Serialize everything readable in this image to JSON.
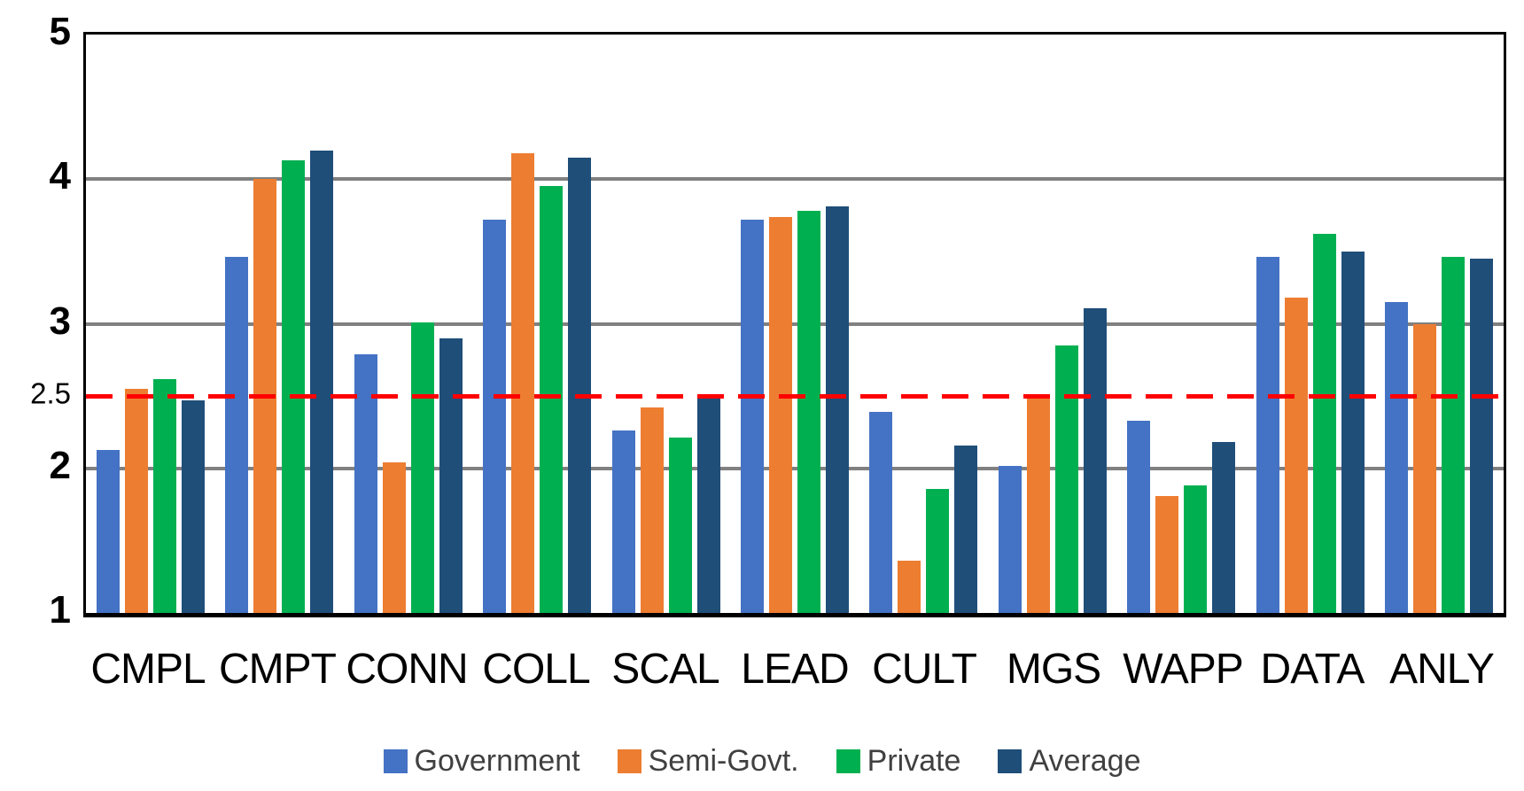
{
  "chart_data": {
    "type": "bar",
    "title": "",
    "categories": [
      "CMPL",
      "CMPT",
      "CONN",
      "COLL",
      "SCAL",
      "LEAD",
      "CULT",
      "MGS",
      "WAPP",
      "DATA",
      "ANLY"
    ],
    "series": [
      {
        "name": "Government",
        "color": "#4472C4",
        "values": [
          2.13,
          3.46,
          2.79,
          3.72,
          2.26,
          3.72,
          2.39,
          2.02,
          2.33,
          3.46,
          3.15
        ]
      },
      {
        "name": "Semi-Govt.",
        "color": "#ED7D31",
        "values": [
          2.55,
          4.0,
          2.04,
          4.18,
          2.42,
          3.74,
          1.36,
          2.5,
          1.81,
          3.18,
          3.0
        ]
      },
      {
        "name": "Private",
        "color": "#00B050",
        "values": [
          2.62,
          4.13,
          3.01,
          3.95,
          2.21,
          3.78,
          1.86,
          2.85,
          1.88,
          3.62,
          3.46
        ]
      },
      {
        "name": "Average",
        "color": "#1F4E79",
        "values": [
          2.47,
          4.2,
          2.9,
          4.15,
          2.49,
          3.81,
          2.16,
          3.11,
          2.18,
          3.5,
          3.45
        ]
      }
    ],
    "ylim": [
      1,
      5
    ],
    "y_ticks": [
      {
        "value": 5,
        "label": "5",
        "size": "large"
      },
      {
        "value": 4,
        "label": "4",
        "size": "large"
      },
      {
        "value": 3,
        "label": "3",
        "size": "large"
      },
      {
        "value": 2.5,
        "label": "2.5",
        "size": "small"
      },
      {
        "value": 2,
        "label": "2",
        "size": "large"
      },
      {
        "value": 1,
        "label": "1",
        "size": "large"
      }
    ],
    "gridlines": [
      2,
      3,
      4
    ],
    "grid_color": "#808080",
    "reference_line": {
      "value": 2.5,
      "color": "#FF0000",
      "style": "dashed"
    },
    "legend_position": "bottom",
    "xlabel": "",
    "ylabel": ""
  }
}
